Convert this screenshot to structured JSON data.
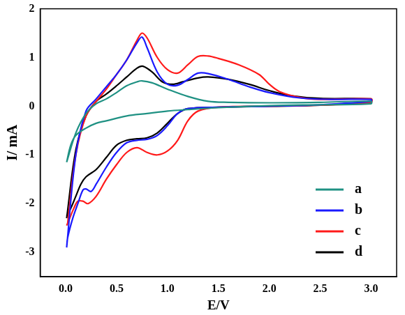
{
  "chart_data": {
    "type": "line",
    "x_label": "E/V",
    "y_label": "I/ mA",
    "xlim": [
      -0.25,
      3.25
    ],
    "xticks": [
      {
        "value": 0,
        "label": "0.0"
      },
      {
        "value": 0.5,
        "label": "0.5"
      },
      {
        "value": 1,
        "label": "1.0"
      },
      {
        "value": 1.5,
        "label": "1.5"
      },
      {
        "value": 2,
        "label": "2.0"
      },
      {
        "value": 2.5,
        "label": "2.5"
      },
      {
        "value": 3,
        "label": "3.0"
      }
    ],
    "ylim": [
      -3.5,
      2
    ],
    "yticks": [
      -3,
      -2,
      -1,
      0,
      1,
      2
    ],
    "grid": false,
    "legend": "lower right",
    "series": [
      {
        "name": "a",
        "color": "#1f9183",
        "x": [
          0.01,
          0.1,
          0.2,
          0.3,
          0.4,
          0.5,
          0.6,
          0.7,
          0.75,
          0.85,
          1.0,
          1.2,
          1.4,
          1.6,
          2.0,
          2.5,
          3.0,
          3.0,
          2.5,
          2.0,
          1.5,
          1.2,
          1.0,
          0.8,
          0.6,
          0.4,
          0.3,
          0.2,
          0.1,
          0.05,
          0.01
        ],
        "values": [
          -1.15,
          -0.55,
          -0.15,
          0.05,
          0.15,
          0.28,
          0.42,
          0.5,
          0.52,
          0.48,
          0.35,
          0.2,
          0.1,
          0.08,
          0.07,
          0.08,
          0.1,
          0.05,
          0.03,
          0.01,
          -0.03,
          -0.07,
          -0.1,
          -0.15,
          -0.2,
          -0.3,
          -0.35,
          -0.45,
          -0.6,
          -0.8,
          -1.15
        ]
      },
      {
        "name": "b",
        "color": "#1a1aff",
        "x": [
          0.01,
          0.1,
          0.2,
          0.3,
          0.4,
          0.5,
          0.6,
          0.7,
          0.75,
          0.8,
          0.9,
          1.0,
          1.1,
          1.2,
          1.3,
          1.4,
          1.6,
          1.8,
          2.0,
          2.3,
          2.6,
          3.0,
          3.0,
          2.5,
          2.0,
          1.5,
          1.2,
          1.1,
          1.0,
          0.9,
          0.8,
          0.7,
          0.6,
          0.5,
          0.4,
          0.3,
          0.25,
          0.2,
          0.17,
          0.12,
          0.07,
          0.02,
          0.01
        ],
        "values": [
          -2.9,
          -1.0,
          -0.1,
          0.15,
          0.4,
          0.65,
          0.95,
          1.3,
          1.42,
          1.2,
          0.7,
          0.45,
          0.43,
          0.55,
          0.68,
          0.67,
          0.55,
          0.4,
          0.28,
          0.17,
          0.14,
          0.14,
          0.1,
          0.03,
          0,
          -0.02,
          -0.05,
          -0.15,
          -0.4,
          -0.6,
          -0.68,
          -0.7,
          -0.75,
          -0.95,
          -1.25,
          -1.6,
          -1.75,
          -1.7,
          -1.72,
          -2.0,
          -2.3,
          -2.7,
          -2.9
        ]
      },
      {
        "name": "c",
        "color": "#ff1a1a",
        "x": [
          0.02,
          0.1,
          0.2,
          0.3,
          0.4,
          0.5,
          0.6,
          0.7,
          0.75,
          0.8,
          0.9,
          1.0,
          1.1,
          1.2,
          1.3,
          1.4,
          1.5,
          1.7,
          1.9,
          2.0,
          2.1,
          2.3,
          2.5,
          3.0,
          3.0,
          2.5,
          2.0,
          1.5,
          1.3,
          1.2,
          1.1,
          1.0,
          0.9,
          0.8,
          0.7,
          0.6,
          0.5,
          0.4,
          0.3,
          0.22,
          0.17,
          0.12,
          0.08,
          0.03,
          0.01
        ],
        "values": [
          -2.4,
          -1.0,
          -0.2,
          0.1,
          0.35,
          0.65,
          0.95,
          1.35,
          1.5,
          1.4,
          1.0,
          0.75,
          0.68,
          0.85,
          1.02,
          1.03,
          0.98,
          0.85,
          0.65,
          0.45,
          0.3,
          0.18,
          0.14,
          0.15,
          0.08,
          0.02,
          0,
          -0.02,
          -0.1,
          -0.3,
          -0.7,
          -0.92,
          -1.0,
          -0.95,
          -0.85,
          -0.95,
          -1.2,
          -1.5,
          -1.85,
          -2.0,
          -1.95,
          -1.95,
          -2.1,
          -2.35,
          -2.45
        ]
      },
      {
        "name": "d",
        "color": "#000000",
        "x": [
          0.01,
          0.1,
          0.2,
          0.3,
          0.4,
          0.5,
          0.6,
          0.7,
          0.76,
          0.85,
          0.95,
          1.05,
          1.15,
          1.3,
          1.4,
          1.6,
          1.8,
          2.0,
          2.2,
          2.5,
          3.0,
          3.0,
          2.5,
          2.0,
          1.5,
          1.2,
          1.1,
          1.0,
          0.9,
          0.8,
          0.7,
          0.6,
          0.5,
          0.4,
          0.3,
          0.2,
          0.15,
          0.1,
          0.05,
          0.01
        ],
        "values": [
          -2.3,
          -0.9,
          -0.2,
          0.1,
          0.25,
          0.42,
          0.6,
          0.78,
          0.82,
          0.7,
          0.5,
          0.45,
          0.5,
          0.58,
          0.6,
          0.55,
          0.45,
          0.32,
          0.22,
          0.16,
          0.15,
          0.1,
          0.02,
          0,
          -0.02,
          -0.05,
          -0.15,
          -0.35,
          -0.55,
          -0.65,
          -0.67,
          -0.7,
          -0.8,
          -1.05,
          -1.3,
          -1.45,
          -1.6,
          -1.85,
          -2.1,
          -2.25
        ]
      }
    ]
  }
}
